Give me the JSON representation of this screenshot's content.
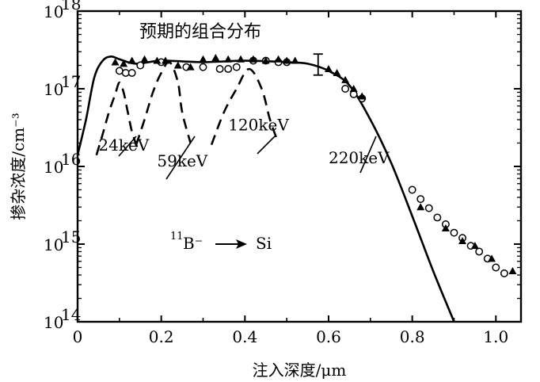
{
  "chart_data": {
    "type": "line",
    "title": "预期的组合分布",
    "xlabel": "注入深度/μm",
    "ylabel": "掺杂浓度/cm⁻³",
    "reaction": {
      "mass_number": "11",
      "projectile": "B⁻",
      "target": "Si"
    },
    "xlim": [
      0,
      1.06
    ],
    "ylim": [
      100000000000000.0,
      1e+18
    ],
    "yscale": "log",
    "x_ticks": [
      {
        "v": 0,
        "label": "0"
      },
      {
        "v": 0.2,
        "label": "0.2"
      },
      {
        "v": 0.4,
        "label": "0.4"
      },
      {
        "v": 0.6,
        "label": "0.6"
      },
      {
        "v": 0.8,
        "label": "0.8"
      },
      {
        "v": 1.0,
        "label": "1.0"
      }
    ],
    "y_ticks": [
      {
        "v": 100000000000000.0,
        "base": "10",
        "exp": "14"
      },
      {
        "v": 1000000000000000.0,
        "base": "10",
        "exp": "15"
      },
      {
        "v": 1e+16,
        "base": "10",
        "exp": "16"
      },
      {
        "v": 1e+17,
        "base": "10",
        "exp": "17"
      },
      {
        "v": 1e+18,
        "base": "10",
        "exp": "18"
      }
    ],
    "predicted_total": {
      "style": "solid",
      "x": [
        0,
        0.02,
        0.04,
        0.06,
        0.08,
        0.1,
        0.14,
        0.2,
        0.3,
        0.4,
        0.5,
        0.55,
        0.6,
        0.65,
        0.7,
        0.75,
        0.8,
        0.85,
        0.9
      ],
      "y": [
        1.4e+16,
        4e+16,
        1.4e+17,
        2.3e+17,
        2.6e+17,
        2.4e+17,
        2.1e+17,
        2.3e+17,
        2.2e+17,
        2.3e+17,
        2.2e+17,
        2.1e+17,
        1.7e+17,
        1.1e+17,
        4e+16,
        1.1e+16,
        2300000000000000.0,
        450000000000000.0,
        100000000000000.0
      ]
    },
    "component_curves": [
      {
        "label": "24keV",
        "style": "dashed",
        "x": [
          0.045,
          0.06,
          0.075,
          0.09,
          0.1,
          0.11,
          0.12,
          0.13,
          0.145
        ],
        "y": [
          1.4e+16,
          2.6e+16,
          5e+16,
          8.5e+16,
          1.2e+17,
          9e+16,
          5e+16,
          2.8e+16,
          1.6e+16
        ]
      },
      {
        "label": "59keV",
        "style": "dashed",
        "x": [
          0.14,
          0.16,
          0.18,
          0.2,
          0.22,
          0.24,
          0.25,
          0.27
        ],
        "y": [
          1.9e+16,
          4e+16,
          9e+16,
          1.6e+17,
          2.2e+17,
          1.2e+17,
          5e+16,
          2e+16
        ]
      },
      {
        "label": "120keV",
        "style": "dashed",
        "x": [
          0.32,
          0.35,
          0.38,
          0.41,
          0.44,
          0.46,
          0.48
        ],
        "y": [
          1.9e+16,
          5e+16,
          1e+17,
          1.8e+17,
          1e+17,
          4e+16,
          2e+16
        ]
      }
    ],
    "annotations": [
      {
        "text": "24keV",
        "x": 0.05,
        "y": 1.6e+16
      },
      {
        "text": "59keV",
        "x": 0.19,
        "y": 1e+16
      },
      {
        "text": "120keV",
        "x": 0.36,
        "y": 2.9e+16
      },
      {
        "text": "220keV",
        "x": 0.6,
        "y": 1.1e+16
      }
    ],
    "series": [
      {
        "marker": "circle",
        "x": [
          0.1,
          0.115,
          0.13,
          0.15,
          0.2,
          0.26,
          0.3,
          0.34,
          0.36,
          0.38,
          0.42,
          0.45,
          0.48,
          0.5,
          0.64,
          0.66,
          0.68,
          0.8,
          0.82,
          0.84,
          0.86,
          0.88,
          0.9,
          0.92,
          0.94,
          0.96,
          0.98,
          1.0,
          1.02
        ],
        "y": [
          1.7e+17,
          1.6e+17,
          1.6e+17,
          2e+17,
          2.2e+17,
          1.9e+17,
          1.9e+17,
          1.8e+17,
          1.8e+17,
          1.9e+17,
          2.3e+17,
          2.3e+17,
          2.2e+17,
          2.2e+17,
          1e+17,
          8.5e+16,
          7.5e+16,
          5000000000000000.0,
          3800000000000000.0,
          2900000000000000.0,
          2200000000000000.0,
          1800000000000000.0,
          1400000000000000.0,
          1200000000000000.0,
          950000000000000.0,
          800000000000000.0,
          650000000000000.0,
          500000000000000.0,
          420000000000000.0
        ]
      },
      {
        "marker": "triangle",
        "x": [
          0.09,
          0.11,
          0.13,
          0.16,
          0.19,
          0.21,
          0.24,
          0.27,
          0.3,
          0.33,
          0.36,
          0.39,
          0.42,
          0.45,
          0.48,
          0.5,
          0.52,
          0.6,
          0.62,
          0.64,
          0.66,
          0.68,
          0.82,
          0.88,
          0.92,
          0.95,
          0.99,
          1.04
        ],
        "y": [
          2.2e+17,
          2.1e+17,
          2.3e+17,
          2.4e+17,
          2.3e+17,
          2.3e+17,
          2e+17,
          1.9e+17,
          2.4e+17,
          2.5e+17,
          2.4e+17,
          2.4e+17,
          2.4e+17,
          2.3e+17,
          2.4e+17,
          2.3e+17,
          2.3e+17,
          1.8e+17,
          1.6e+17,
          1.3e+17,
          1e+17,
          8e+16,
          3000000000000000.0,
          1600000000000000.0,
          1100000000000000.0,
          950000000000000.0,
          650000000000000.0,
          450000000000000.0
        ]
      }
    ],
    "error_bar": {
      "x": 0.575,
      "y_low": 1.5e+17,
      "y_high": 2.8e+17
    },
    "grid": false,
    "legend": "none"
  }
}
